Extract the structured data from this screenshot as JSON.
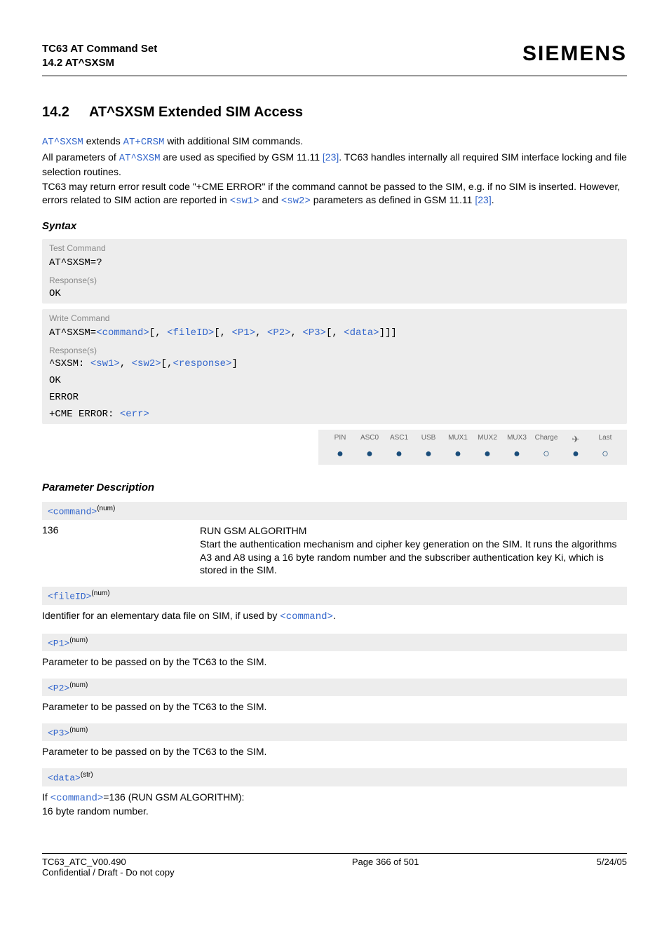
{
  "header": {
    "title_line1": "TC63 AT Command Set",
    "title_line2": "14.2 AT^SXSM",
    "brand": "SIEMENS"
  },
  "section": {
    "number": "14.2",
    "title": "AT^SXSM   Extended SIM Access"
  },
  "intro": {
    "p1_a": "AT^SXSM",
    "p1_b": " extends ",
    "p1_c": "AT+CRSM",
    "p1_d": " with additional SIM commands.",
    "p2_a": "All parameters of ",
    "p2_b": "AT^SXSM",
    "p2_c": " are used as specified by GSM 11.11 ",
    "p2_d": "[23]",
    "p2_e": ". TC63 handles internally all required SIM interface locking and file selection routines.",
    "p3_a": "TC63 may return error result code \"+CME ERROR\" if the command cannot be passed to the SIM, e.g. if no SIM is inserted. However, errors related to SIM action are reported in ",
    "p3_b": "<sw1>",
    "p3_c": " and ",
    "p3_d": "<sw2>",
    "p3_e": " parameters as defined in GSM 11.11 ",
    "p3_f": "[23]",
    "p3_g": "."
  },
  "syntax": {
    "label": "Syntax",
    "test_cmd_label": "Test Command",
    "test_cmd": "AT^SXSM=?",
    "resp_label": "Response(s)",
    "ok": "OK",
    "write_cmd_label": "Write Command",
    "write_prefix": "AT^SXSM=",
    "wc_command": "<command>",
    "wc_b1": "[, ",
    "wc_fileid": "<fileID>",
    "wc_b2": "[, ",
    "wc_p1": "<P1>",
    "wc_c1": ", ",
    "wc_p2": "<P2>",
    "wc_c2": ", ",
    "wc_p3": "<P3>",
    "wc_b3": "[, ",
    "wc_data": "<data>",
    "wc_close": "]]]",
    "resp_prefix": "^SXSM: ",
    "resp_sw1": "<sw1>",
    "resp_c1": ", ",
    "resp_sw2": "<sw2>",
    "resp_b1": "[,",
    "resp_response": "<response>",
    "resp_close": "]",
    "error": "ERROR",
    "cme_prefix": "+CME ERROR: ",
    "cme_err": "<err>"
  },
  "icons": {
    "headers": [
      "PIN",
      "ASC0",
      "ASC1",
      "USB",
      "MUX1",
      "MUX2",
      "MUX3",
      "Charge",
      "✈",
      "Last"
    ],
    "states": [
      "filled",
      "filled",
      "filled",
      "filled",
      "filled",
      "filled",
      "filled",
      "empty",
      "filled",
      "empty"
    ]
  },
  "params": {
    "label": "Parameter Description",
    "command_box": "<command>",
    "num_sup": "(num)",
    "str_sup": "(str)",
    "command_key": "136",
    "command_desc_title": "RUN GSM ALGORITHM",
    "command_desc_body": "Start the authentication mechanism and cipher key generation on the SIM. It runs the algorithms A3 and A8 using a 16 byte random number and the subscriber authentication key Ki, which is stored in the SIM.",
    "fileid_box": "<fileID>",
    "fileid_text_a": "Identifier for an elementary data file on SIM, if used by ",
    "fileid_text_b": "<command>",
    "fileid_text_c": ".",
    "p1_box": "<P1>",
    "p1_text": "Parameter to be passed on by the TC63 to the SIM.",
    "p2_box": "<P2>",
    "p2_text": "Parameter to be passed on by the TC63 to the SIM.",
    "p3_box": "<P3>",
    "p3_text": "Parameter to be passed on by the TC63 to the SIM.",
    "data_box": "<data>",
    "data_text_a": "If ",
    "data_text_b": "<command>",
    "data_text_c": "=136 (RUN GSM ALGORITHM):",
    "data_text_d": "16 byte random number."
  },
  "footer": {
    "left_line1": "TC63_ATC_V00.490",
    "left_line2": "Confidential / Draft - Do not copy",
    "center": "Page 366 of 501",
    "right": "5/24/05"
  },
  "colors": {
    "link": "#3366cc",
    "gray_bg": "#ededed",
    "gray_text": "#888888",
    "rule": "#999999",
    "dot": "#1a4d7a"
  }
}
